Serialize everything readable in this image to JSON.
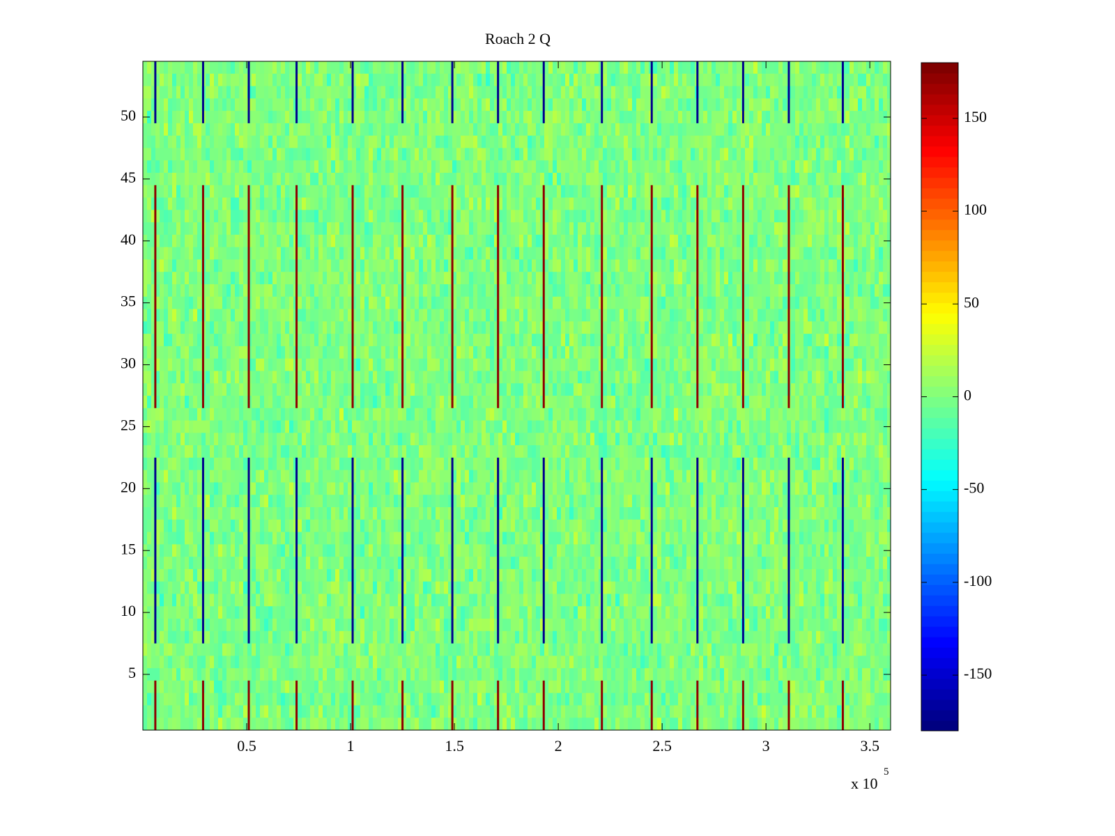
{
  "chart_data": {
    "type": "heatmap",
    "title": "Roach 2 Q",
    "xlabel": "",
    "ylabel": "",
    "x_exponent_label": "x 10",
    "x_exponent": "5",
    "xlim": [
      0,
      360000
    ],
    "ylim": [
      0.5,
      54.5
    ],
    "n_rows": 54,
    "x_ticks": [
      {
        "value": 50000,
        "label": "0.5"
      },
      {
        "value": 100000,
        "label": "1"
      },
      {
        "value": 150000,
        "label": "1.5"
      },
      {
        "value": 200000,
        "label": "2"
      },
      {
        "value": 250000,
        "label": "2.5"
      },
      {
        "value": 300000,
        "label": "3"
      },
      {
        "value": 350000,
        "label": "3.5"
      }
    ],
    "y_ticks": [
      {
        "value": 5,
        "label": "5"
      },
      {
        "value": 10,
        "label": "10"
      },
      {
        "value": 15,
        "label": "15"
      },
      {
        "value": 20,
        "label": "20"
      },
      {
        "value": 25,
        "label": "25"
      },
      {
        "value": 30,
        "label": "30"
      },
      {
        "value": 35,
        "label": "35"
      },
      {
        "value": 40,
        "label": "40"
      },
      {
        "value": 45,
        "label": "45"
      },
      {
        "value": 50,
        "label": "50"
      }
    ],
    "colorbar": {
      "colormap": "jet",
      "clim": [
        -180,
        180
      ],
      "ticks": [
        {
          "value": 150,
          "label": "150"
        },
        {
          "value": 100,
          "label": "100"
        },
        {
          "value": 50,
          "label": "50"
        },
        {
          "value": 0,
          "label": "0"
        },
        {
          "value": -50,
          "label": "-50"
        },
        {
          "value": -100,
          "label": "-100"
        },
        {
          "value": -150,
          "label": "-150"
        }
      ]
    },
    "background_value_range": [
      -30,
      30
    ],
    "row_bands": [
      {
        "y_range": [
          0.5,
          4.5
        ],
        "spike_sign": 1
      },
      {
        "y_range": [
          4.5,
          7.5
        ],
        "spike_sign": 0
      },
      {
        "y_range": [
          7.5,
          22.5
        ],
        "spike_sign": -1
      },
      {
        "y_range": [
          22.5,
          26.5
        ],
        "spike_sign": 0
      },
      {
        "y_range": [
          26.5,
          44.5
        ],
        "spike_sign": 1
      },
      {
        "y_range": [
          44.5,
          49.5
        ],
        "spike_sign": 0
      },
      {
        "y_range": [
          49.5,
          54.5
        ],
        "spike_sign": -1
      }
    ],
    "spike_columns_x": [
      6000,
      29000,
      51000,
      74000,
      101000,
      125000,
      149000,
      171000,
      193000,
      221000,
      245000,
      267000,
      289000,
      311000,
      337000
    ],
    "spike_magnitude": 175
  }
}
